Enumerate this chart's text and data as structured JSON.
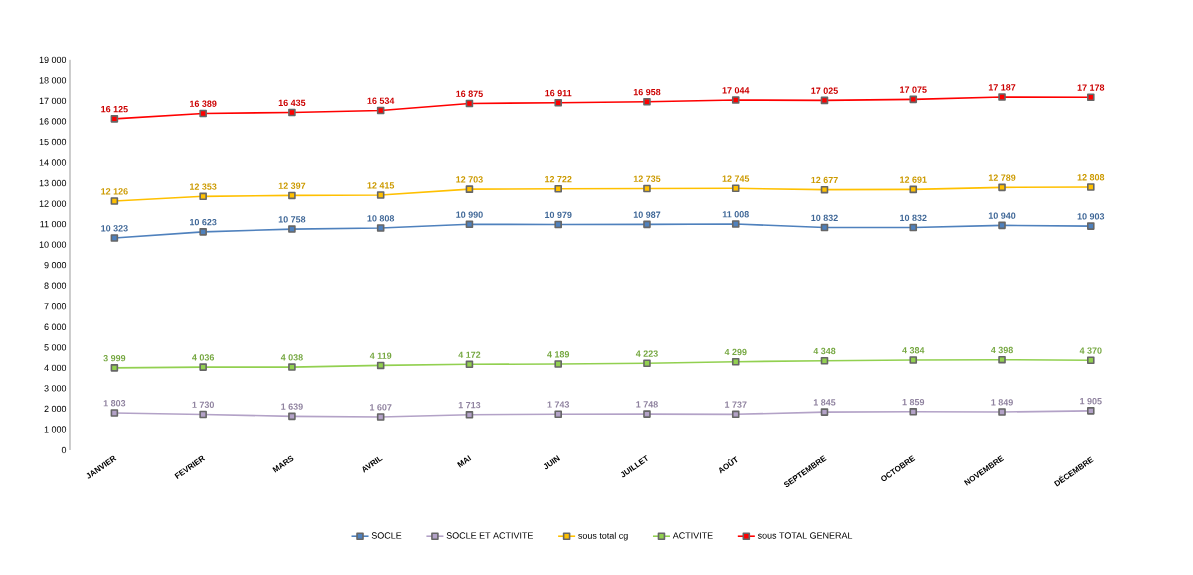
{
  "chart_data": {
    "type": "line",
    "categories": [
      "JANVIER",
      "FEVRIER",
      "MARS",
      "AVRIL",
      "MAI",
      "JUIN",
      "JUILLET",
      "AOÛT",
      "SEPTEMBRE",
      "OCTOBRE",
      "NOVEMBRE",
      "DÉCEMBRE"
    ],
    "ylim": [
      0,
      19000
    ],
    "yticks": [
      {
        "value": 0,
        "label": "0"
      },
      {
        "value": 1000,
        "label": "1 000"
      },
      {
        "value": 2000,
        "label": "2 000"
      },
      {
        "value": 3000,
        "label": "3 000"
      },
      {
        "value": 4000,
        "label": "4 000"
      },
      {
        "value": 5000,
        "label": "5 000"
      },
      {
        "value": 6000,
        "label": "6 000"
      },
      {
        "value": 7000,
        "label": "7 000"
      },
      {
        "value": 8000,
        "label": "8 000"
      },
      {
        "value": 9000,
        "label": "9 000"
      },
      {
        "value": 10000,
        "label": "10 000"
      },
      {
        "value": 11000,
        "label": "11 000"
      },
      {
        "value": 12000,
        "label": "12 000"
      },
      {
        "value": 13000,
        "label": "13 000"
      },
      {
        "value": 14000,
        "label": "14 000"
      },
      {
        "value": 15000,
        "label": "15 000"
      },
      {
        "value": 16000,
        "label": "16 000"
      },
      {
        "value": 17000,
        "label": "17 000"
      },
      {
        "value": 18000,
        "label": "18 000"
      },
      {
        "value": 19000,
        "label": "19 000"
      }
    ],
    "grid": false,
    "legend": "bottom",
    "marker": "square",
    "line_style": "solid",
    "series": [
      {
        "name": "SOCLE",
        "color": "#4f81bd",
        "values": [
          10323,
          10623,
          10758,
          10808,
          10990,
          10979,
          10987,
          11008,
          10832,
          10832,
          10940,
          10903
        ],
        "value_labels": [
          "10 323",
          "10 623",
          "10 758",
          "10 808",
          "10 990",
          "10 979",
          "10 987",
          "11 008",
          "10 832",
          "10 832",
          "10 940",
          "10 903"
        ]
      },
      {
        "name": "SOCLE ET ACTIVITE",
        "color": "#b3a2c7",
        "values": [
          1803,
          1730,
          1639,
          1607,
          1713,
          1743,
          1748,
          1737,
          1845,
          1859,
          1849,
          1905
        ],
        "value_labels": [
          "1 803",
          "1 730",
          "1 639",
          "1 607",
          "1 713",
          "1 743",
          "1 748",
          "1 737",
          "1 845",
          "1 859",
          "1 849",
          "1 905"
        ]
      },
      {
        "name": "sous total cg",
        "color": "#ffc000",
        "values": [
          12126,
          12353,
          12397,
          12415,
          12703,
          12722,
          12735,
          12745,
          12677,
          12691,
          12789,
          12808
        ],
        "value_labels": [
          "12 126",
          "12 353",
          "12 397",
          "12 415",
          "12 703",
          "12 722",
          "12 735",
          "12 745",
          "12 677",
          "12 691",
          "12 789",
          "12 808"
        ]
      },
      {
        "name": "ACTIVITE",
        "color": "#92d050",
        "values": [
          3999,
          4036,
          4038,
          4119,
          4172,
          4189,
          4223,
          4299,
          4348,
          4384,
          4398,
          4370
        ],
        "value_labels": [
          "3 999",
          "4 036",
          "4 038",
          "4 119",
          "4 172",
          "4 189",
          "4 223",
          "4 299",
          "4 348",
          "4 384",
          "4 398",
          "4 370"
        ]
      },
      {
        "name": "sous TOTAL GENERAL",
        "color": "#ff0000",
        "values": [
          16125,
          16389,
          16435,
          16534,
          16875,
          16911,
          16958,
          17044,
          17025,
          17075,
          17187,
          17178
        ],
        "value_labels": [
          "16 125",
          "16 389",
          "16 435",
          "16 534",
          "16 875",
          "16 911",
          "16 958",
          "17 044",
          "17 025",
          "17 075",
          "17 187",
          "17 178"
        ]
      }
    ]
  }
}
